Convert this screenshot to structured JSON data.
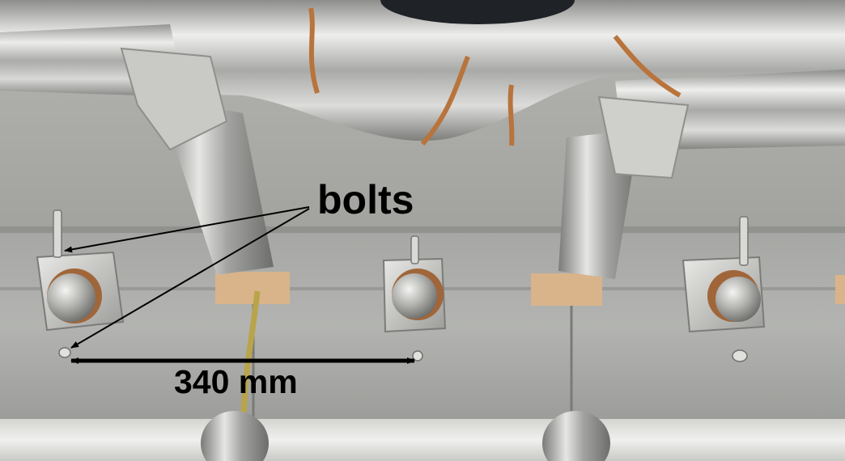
{
  "annotations": {
    "bolts_label": "bolts",
    "distance_label": "340 mm"
  },
  "colors": {
    "annotation_ink": "#000000",
    "steel_light": "#e8e8e6",
    "steel_mid": "#b9b9b6",
    "steel_dark": "#6f706e",
    "copper_weld": "#b8743c",
    "cardboard": "#d9b48a",
    "yellow_cable": "#b9a44a"
  }
}
